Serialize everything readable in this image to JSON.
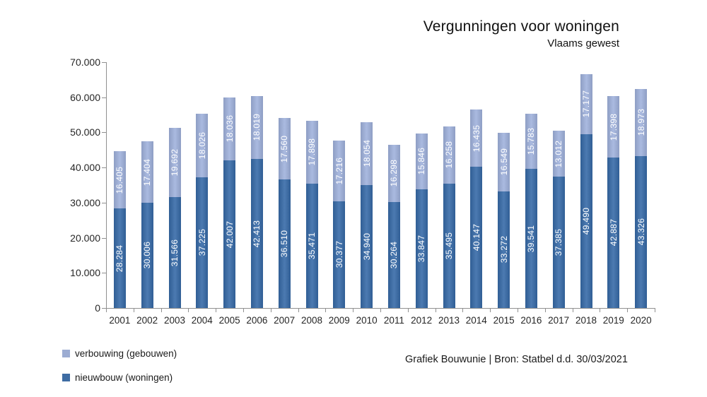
{
  "title": "Vergunningen voor woningen",
  "subtitle": "Vlaams gewest",
  "footer": "Grafiek Bouwunie | Bron: Statbel d.d. 30/03/2021",
  "colors": {
    "verbouwing": "#9CACD2",
    "nieuwbouw": "#3E6CA3",
    "axis": "#909090",
    "bar_label_text": "#FFFFFF"
  },
  "legend": [
    {
      "label": "verbouwing (gebouwen)",
      "color": "#9CACD2"
    },
    {
      "label": "nieuwbouw (woningen)",
      "color": "#3E6CA3"
    }
  ],
  "chart_data": {
    "type": "bar",
    "stacked": true,
    "title": "Vergunningen voor woningen",
    "subtitle": "Vlaams gewest",
    "categories": [
      2001,
      2002,
      2003,
      2004,
      2005,
      2006,
      2007,
      2008,
      2009,
      2010,
      2011,
      2012,
      2013,
      2014,
      2015,
      2016,
      2017,
      2018,
      2019,
      2020
    ],
    "series": [
      {
        "name": "nieuwbouw (woningen)",
        "color": "#3E6CA3",
        "values": [
          28284,
          30006,
          31566,
          37225,
          42007,
          42413,
          36510,
          35471,
          30377,
          34940,
          30264,
          33847,
          35495,
          40147,
          33272,
          39541,
          37385,
          49490,
          42887,
          43326
        ]
      },
      {
        "name": "verbouwing (gebouwen)",
        "color": "#9CACD2",
        "values": [
          16405,
          17404,
          19692,
          18026,
          18036,
          18019,
          17560,
          17898,
          17216,
          18054,
          16298,
          15846,
          16258,
          16435,
          16549,
          15783,
          13012,
          17177,
          17398,
          18973
        ]
      }
    ],
    "xlabel": "",
    "ylabel": "",
    "ylim": [
      0,
      70000
    ],
    "ytick_step": 10000,
    "ytick_labels": [
      "0",
      "10.000",
      "20.000",
      "30.000",
      "40.000",
      "50.000",
      "60.000",
      "70.000"
    ],
    "grid": false,
    "legend_position": "bottom-left",
    "data_labels": "inside center, rotated 270deg, white, thousands separated with dots"
  }
}
